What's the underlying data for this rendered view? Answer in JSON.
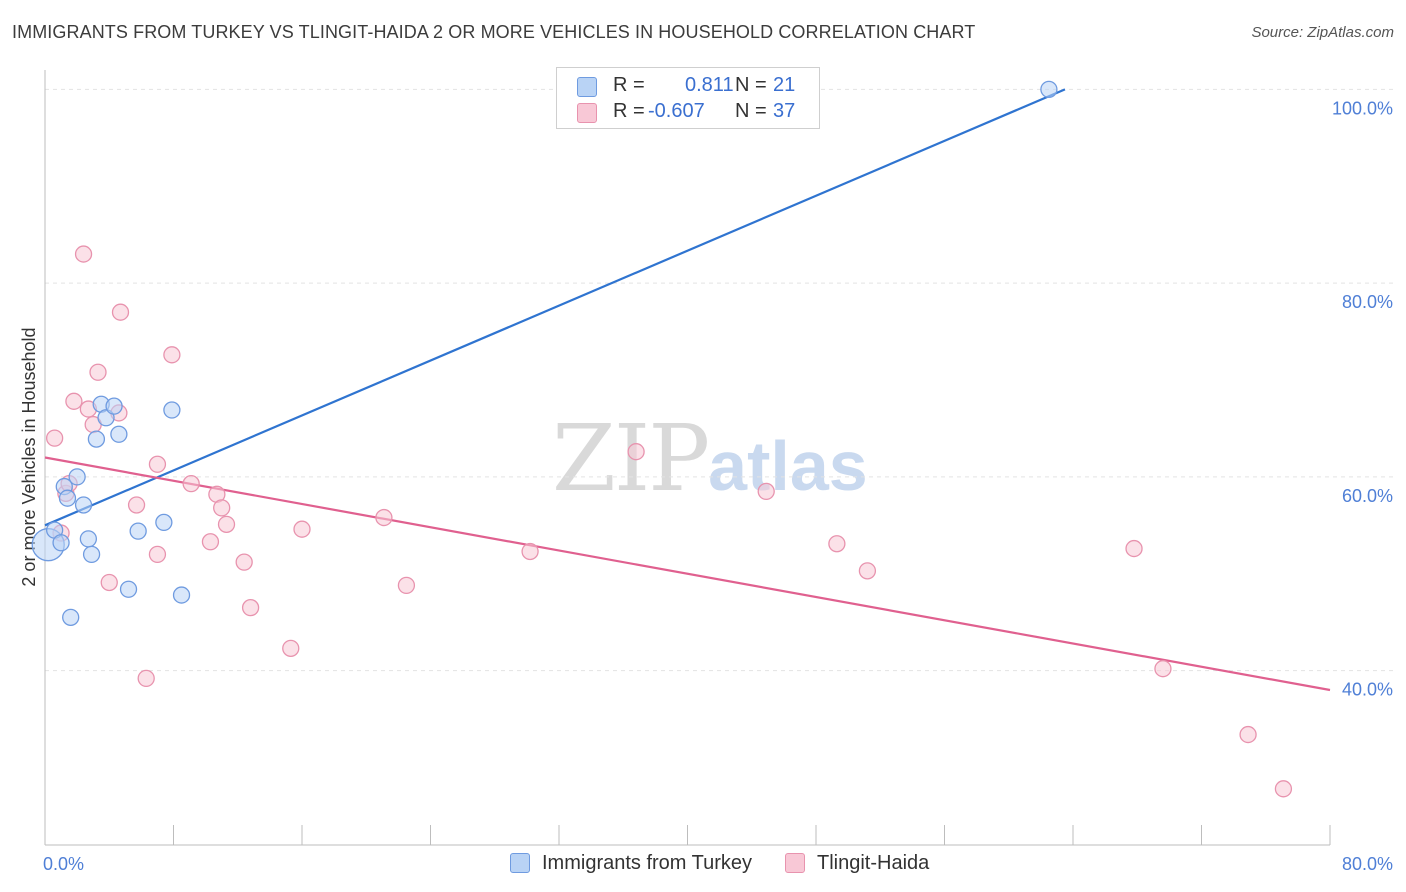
{
  "header": {
    "title": "IMMIGRANTS FROM TURKEY VS TLINGIT-HAIDA 2 OR MORE VEHICLES IN HOUSEHOLD CORRELATION CHART",
    "source": "Source: ZipAtlas.com"
  },
  "watermark": {
    "zip": "ZIP",
    "atlas": "atlas"
  },
  "legend": {
    "series1": {
      "r_label": "R =",
      "r_value": "0.811",
      "n_label": "N =",
      "n_value": "21"
    },
    "series2": {
      "r_label": "R =",
      "r_value": "-0.607",
      "n_label": "N =",
      "n_value": "37"
    }
  },
  "colors": {
    "blue_fill": "#b9d3f5",
    "blue_stroke": "#6f9be0",
    "blue_line": "#2f74d0",
    "pink_fill": "#f8c8d6",
    "pink_stroke": "#e893ae",
    "pink_line": "#e0608f",
    "grid": "#e3e3e3",
    "tick_text": "#4f7fd6"
  },
  "chart_data": {
    "type": "scatter",
    "title": "IMMIGRANTS FROM TURKEY VS TLINGIT-HAIDA 2 OR MORE VEHICLES IN HOUSEHOLD CORRELATION CHART",
    "xlabel": "",
    "ylabel": "2 or more Vehicles in Household",
    "xlim": [
      0,
      80
    ],
    "ylim": [
      22,
      102
    ],
    "x_tick_labels": [
      "0.0%",
      "80.0%"
    ],
    "y_ticks": [
      40,
      60,
      80,
      100
    ],
    "y_tick_labels": [
      "40.0%",
      "60.0%",
      "80.0%",
      "100.0%"
    ],
    "grid": true,
    "legend_position": "top-center",
    "series": [
      {
        "name": "Immigrants from Turkey",
        "color": "#6f9be0",
        "points": [
          {
            "x": 0.2,
            "y": 53.0,
            "big": true
          },
          {
            "x": 0.6,
            "y": 54.5
          },
          {
            "x": 1.2,
            "y": 59.0
          },
          {
            "x": 1.4,
            "y": 57.8
          },
          {
            "x": 1.6,
            "y": 45.5
          },
          {
            "x": 2.0,
            "y": 60.0
          },
          {
            "x": 2.4,
            "y": 57.1
          },
          {
            "x": 2.7,
            "y": 53.6
          },
          {
            "x": 2.9,
            "y": 52.0
          },
          {
            "x": 3.2,
            "y": 63.9
          },
          {
            "x": 3.5,
            "y": 67.5
          },
          {
            "x": 3.8,
            "y": 66.1
          },
          {
            "x": 4.3,
            "y": 67.3
          },
          {
            "x": 4.6,
            "y": 64.4
          },
          {
            "x": 5.2,
            "y": 48.4
          },
          {
            "x": 5.8,
            "y": 54.4
          },
          {
            "x": 7.4,
            "y": 55.3
          },
          {
            "x": 7.9,
            "y": 66.9
          },
          {
            "x": 8.5,
            "y": 47.8
          },
          {
            "x": 1.0,
            "y": 53.2
          },
          {
            "x": 62.5,
            "y": 100.0
          }
        ],
        "trend": {
          "x": [
            0,
            63.5
          ],
          "y": [
            55.0,
            100.0
          ]
        }
      },
      {
        "name": "Tlingit-Haida",
        "color": "#e893ae",
        "points": [
          {
            "x": 0.6,
            "y": 64.0
          },
          {
            "x": 1.0,
            "y": 54.2
          },
          {
            "x": 1.3,
            "y": 58.3
          },
          {
            "x": 1.5,
            "y": 59.3
          },
          {
            "x": 1.8,
            "y": 67.8
          },
          {
            "x": 2.4,
            "y": 83.0
          },
          {
            "x": 2.7,
            "y": 67.0
          },
          {
            "x": 3.0,
            "y": 65.4
          },
          {
            "x": 3.3,
            "y": 70.8
          },
          {
            "x": 4.0,
            "y": 49.1
          },
          {
            "x": 4.6,
            "y": 66.6
          },
          {
            "x": 4.7,
            "y": 77.0
          },
          {
            "x": 5.7,
            "y": 57.1
          },
          {
            "x": 6.3,
            "y": 39.2
          },
          {
            "x": 7.0,
            "y": 52.0
          },
          {
            "x": 7.0,
            "y": 61.3
          },
          {
            "x": 7.9,
            "y": 72.6
          },
          {
            "x": 9.1,
            "y": 59.3
          },
          {
            "x": 10.3,
            "y": 53.3
          },
          {
            "x": 10.7,
            "y": 58.2
          },
          {
            "x": 11.0,
            "y": 56.8
          },
          {
            "x": 11.3,
            "y": 55.1
          },
          {
            "x": 12.4,
            "y": 51.2
          },
          {
            "x": 12.8,
            "y": 46.5
          },
          {
            "x": 15.3,
            "y": 42.3
          },
          {
            "x": 16.0,
            "y": 54.6
          },
          {
            "x": 21.1,
            "y": 55.8
          },
          {
            "x": 22.5,
            "y": 48.8
          },
          {
            "x": 30.2,
            "y": 52.3
          },
          {
            "x": 36.8,
            "y": 62.6
          },
          {
            "x": 44.9,
            "y": 58.5
          },
          {
            "x": 49.3,
            "y": 53.1
          },
          {
            "x": 51.2,
            "y": 50.3
          },
          {
            "x": 67.8,
            "y": 52.6
          },
          {
            "x": 69.6,
            "y": 40.2
          },
          {
            "x": 74.9,
            "y": 33.4
          },
          {
            "x": 77.1,
            "y": 27.8
          }
        ],
        "trend": {
          "x": [
            0,
            80
          ],
          "y": [
            62.0,
            38.0
          ]
        }
      }
    ]
  },
  "bottom_legend": {
    "series1": "Immigrants from Turkey",
    "series2": "Tlingit-Haida"
  }
}
